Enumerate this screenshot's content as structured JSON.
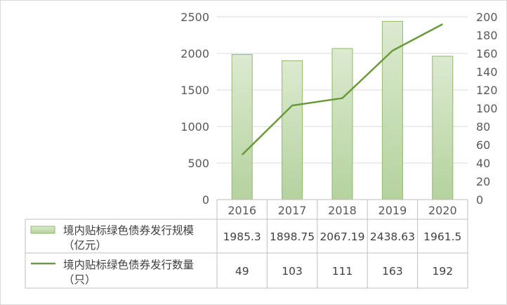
{
  "chart_data": {
    "type": "bar",
    "categories": [
      "2016",
      "2017",
      "2018",
      "2019",
      "2020"
    ],
    "series": [
      {
        "name": "境内贴标绿色债券发行规模（亿元）",
        "name_lines": [
          "境内贴标绿色债券发行规模",
          "（亿元）"
        ],
        "type": "bar",
        "axis": "left",
        "values": [
          1985.3,
          1898.75,
          2067.19,
          2438.63,
          1961.5
        ],
        "value_labels": [
          "1985.3",
          "1898.75",
          "2067.19",
          "2438.63",
          "1961.5"
        ],
        "color": "#a9c98f"
      },
      {
        "name": "境内贴标绿色债券发行数量（只）",
        "name_lines": [
          "境内贴标绿色债券发行数量",
          "（只）"
        ],
        "type": "line",
        "axis": "right",
        "values": [
          49,
          103,
          111,
          163,
          192
        ],
        "value_labels": [
          "49",
          "103",
          "111",
          "163",
          "192"
        ],
        "color": "#6a9a3c"
      }
    ],
    "y_left": {
      "min": 0,
      "max": 2500,
      "ticks": [
        "0",
        "500",
        "1000",
        "1500",
        "2000",
        "2500"
      ]
    },
    "y_right": {
      "min": 0,
      "max": 200,
      "ticks": [
        "0",
        "20",
        "40",
        "60",
        "80",
        "100",
        "120",
        "140",
        "160",
        "180",
        "200"
      ]
    },
    "grid": true,
    "legend": "data-table",
    "title": "",
    "xlabel": "",
    "ylabel": ""
  }
}
